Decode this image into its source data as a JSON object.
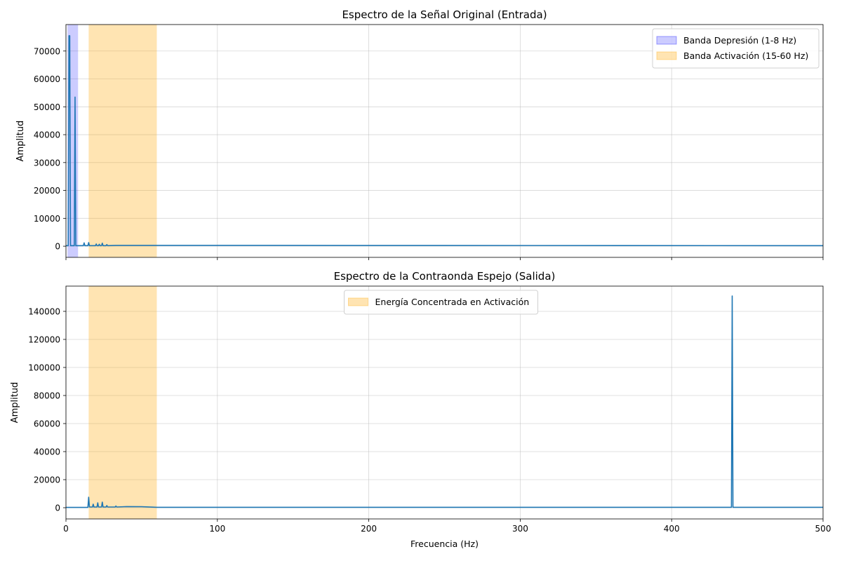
{
  "chart_data": [
    {
      "type": "line",
      "title": "Espectro de la Señal Original (Entrada)",
      "xlabel": "",
      "ylabel": "Amplitud",
      "xlim": [
        0,
        500
      ],
      "ylim": [
        -4000,
        79500
      ],
      "yticks": [
        0,
        10000,
        20000,
        30000,
        40000,
        50000,
        60000,
        70000
      ],
      "xticks": [
        0,
        100,
        200,
        300,
        400,
        500
      ],
      "show_xtick_labels": false,
      "grid": true,
      "legend_position": "upper right",
      "bands": [
        {
          "name": "Banda Depresión (1-8 Hz)",
          "x0": 1,
          "x1": 8,
          "color": "#0000ff",
          "alpha": 0.2
        },
        {
          "name": "Banda Activación (15-60 Hz)",
          "x0": 15,
          "x1": 60,
          "color": "#ffa500",
          "alpha": 0.3
        }
      ],
      "series": [
        {
          "color": "#1f77b4",
          "x": [
            0,
            1.5,
            2,
            2.5,
            3,
            3.5,
            4,
            5.5,
            6,
            6.5,
            11.5,
            12,
            12.5,
            14.5,
            15,
            15.5,
            19.5,
            20,
            20.5,
            21.5,
            22,
            22.5,
            23.5,
            24,
            24.5,
            26.5,
            27,
            27.5,
            33,
            500
          ],
          "y": [
            200,
            200,
            75500,
            75500,
            200,
            200,
            200,
            200,
            53500,
            200,
            200,
            1200,
            200,
            200,
            1300,
            200,
            200,
            800,
            200,
            200,
            700,
            200,
            200,
            1100,
            200,
            200,
            600,
            200,
            300,
            200
          ]
        }
      ]
    },
    {
      "type": "line",
      "title": "Espectro de la Contraonda Espejo (Salida)",
      "xlabel": "Frecuencia (Hz)",
      "ylabel": "Amplitud",
      "xlim": [
        0,
        500
      ],
      "ylim": [
        -8000,
        158000
      ],
      "yticks": [
        0,
        20000,
        40000,
        60000,
        80000,
        100000,
        120000,
        140000
      ],
      "xticks": [
        0,
        100,
        200,
        300,
        400,
        500
      ],
      "show_xtick_labels": true,
      "grid": true,
      "legend_position": "upper center",
      "bands": [
        {
          "name": "Energía Concentrada en Activación",
          "x0": 15,
          "x1": 60,
          "color": "#ffa500",
          "alpha": 0.3
        }
      ],
      "series": [
        {
          "color": "#1f77b4",
          "x": [
            0,
            14.5,
            15,
            15.5,
            17.5,
            18,
            18.5,
            20.5,
            21,
            21.5,
            23.5,
            24,
            24.5,
            26.5,
            27,
            27.5,
            32.5,
            33,
            33.5,
            40,
            50,
            60,
            439.5,
            440,
            440.5,
            500
          ],
          "y": [
            200,
            200,
            7500,
            500,
            500,
            2500,
            500,
            500,
            3500,
            500,
            500,
            4000,
            500,
            500,
            1500,
            500,
            500,
            1200,
            500,
            800,
            700,
            300,
            300,
            151000,
            300,
            300
          ]
        }
      ]
    }
  ]
}
